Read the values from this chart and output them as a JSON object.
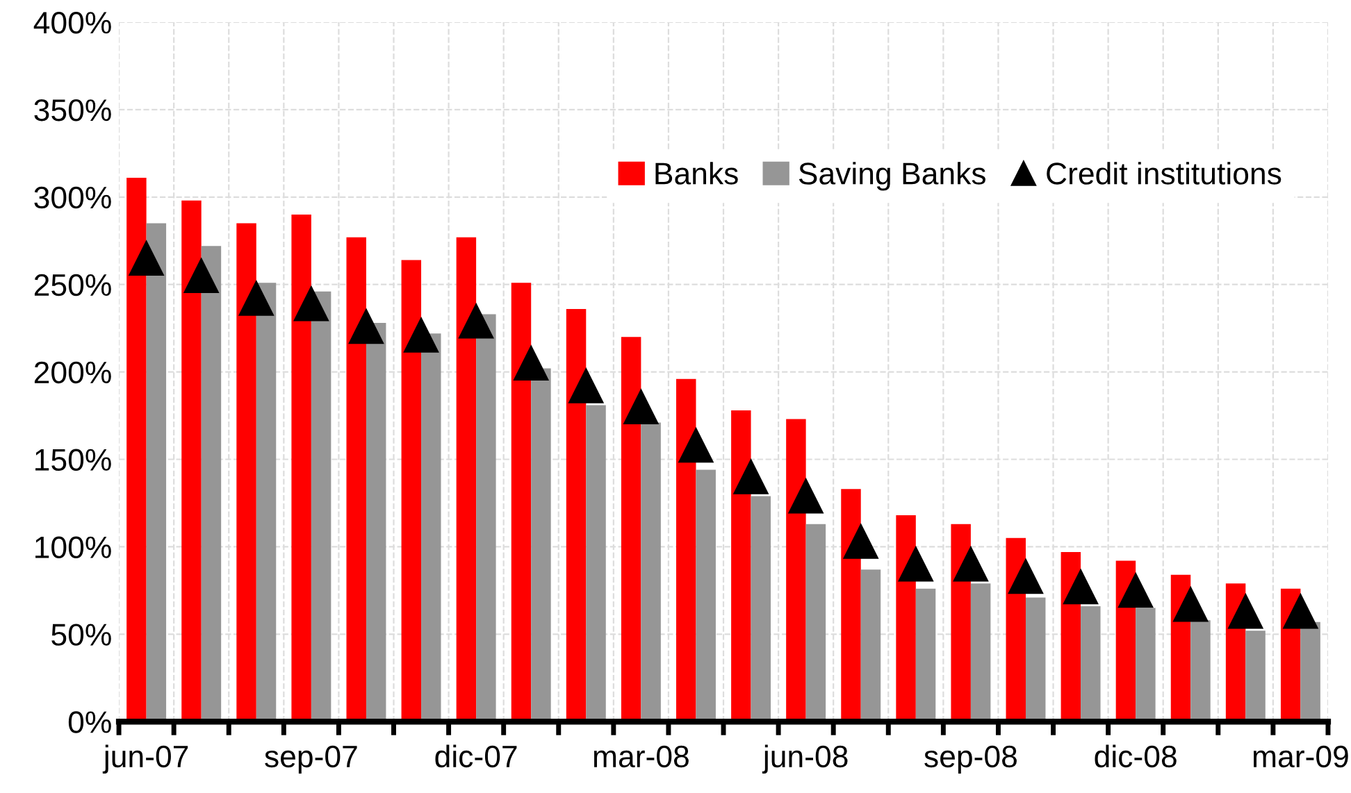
{
  "chart_data": {
    "type": "bar",
    "categories": [
      "jun-07",
      null,
      null,
      "sep-07",
      null,
      null,
      "dic-07",
      null,
      null,
      "mar-08",
      null,
      null,
      "jun-08",
      null,
      null,
      "sep-08",
      null,
      null,
      "dic-08",
      null,
      null,
      "mar-09"
    ],
    "series": [
      {
        "name": "Banks",
        "color": "#ff0000",
        "values": [
          311,
          298,
          285,
          290,
          277,
          264,
          277,
          251,
          236,
          220,
          196,
          178,
          173,
          133,
          118,
          113,
          105,
          97,
          92,
          84,
          79,
          76
        ]
      },
      {
        "name": "Saving Banks",
        "color": "#969696",
        "values": [
          285,
          272,
          251,
          246,
          228,
          222,
          233,
          202,
          181,
          171,
          144,
          129,
          113,
          87,
          76,
          79,
          71,
          66,
          65,
          58,
          52,
          57
        ]
      },
      {
        "name": "Credit institutions",
        "type": "scatter",
        "color": "#000000",
        "marker": "triangle",
        "values": [
          265,
          255,
          242,
          239,
          226,
          221,
          229,
          205,
          192,
          180,
          158,
          140,
          129,
          103,
          90,
          90,
          83,
          77,
          75,
          67,
          63,
          63
        ]
      }
    ],
    "ylim": [
      0,
      400
    ],
    "yticks": [
      {
        "value": 0,
        "label": "0%"
      },
      {
        "value": 50,
        "label": "50%"
      },
      {
        "value": 100,
        "label": "100%"
      },
      {
        "value": 150,
        "label": "150%"
      },
      {
        "value": 200,
        "label": "200%"
      },
      {
        "value": 250,
        "label": "250%"
      },
      {
        "value": 300,
        "label": "300%"
      },
      {
        "value": 350,
        "label": "350%"
      },
      {
        "value": 400,
        "label": "400%"
      }
    ],
    "grid": true,
    "legend": "top right"
  }
}
